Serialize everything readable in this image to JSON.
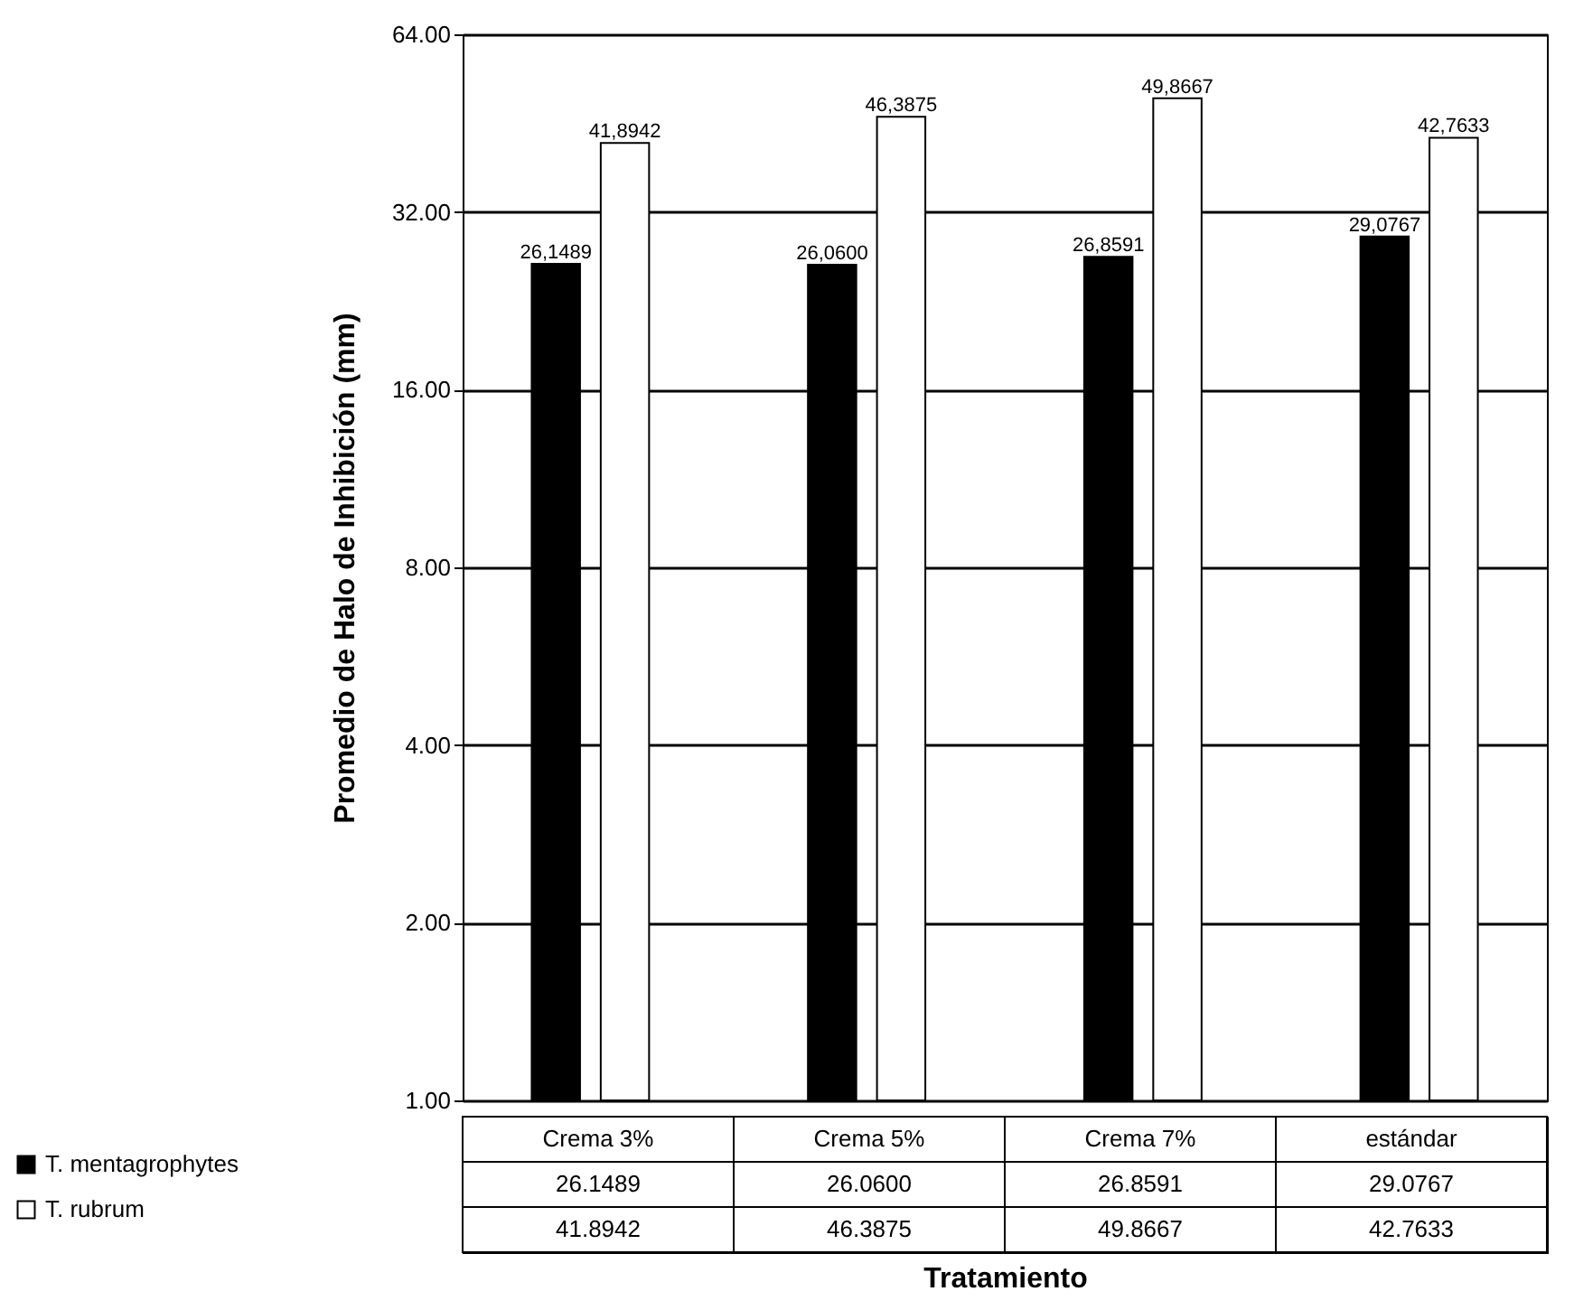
{
  "chart_data": {
    "type": "bar",
    "xlabel": "Tratamiento",
    "ylabel": "Promedio de Halo de Inhibición (mm)",
    "categories": [
      "Crema 3%",
      "Crema 5%",
      "Crema 7%",
      "estándar"
    ],
    "series": [
      {
        "name": "T. mentagrophytes",
        "color": "#000000",
        "values": [
          26.1489,
          26.06,
          26.8591,
          29.0767
        ],
        "value_labels": [
          "26,1489",
          "26,0600",
          "26,8591",
          "29,0767"
        ]
      },
      {
        "name": "T. rubrum",
        "color": "#ffffff",
        "values": [
          41.8942,
          46.3875,
          49.8667,
          42.7633
        ],
        "value_labels": [
          "41,8942",
          "46,3875",
          "49,8667",
          "42,7633"
        ]
      }
    ],
    "log": "y",
    "ylim": [
      1,
      64
    ],
    "yticks": [
      {
        "value": 1,
        "label": "1.00"
      },
      {
        "value": 2,
        "label": "2.00"
      },
      {
        "value": 4,
        "label": "4.00"
      },
      {
        "value": 8,
        "label": "8.00"
      },
      {
        "value": 16,
        "label": "16.00"
      },
      {
        "value": 32,
        "label": "32.00"
      },
      {
        "value": 64,
        "label": "64.00"
      }
    ],
    "grid": "y",
    "legend": "bottom left",
    "annotations": [
      "26.1489",
      "26.0600",
      "26.8591",
      "29.0767",
      "41.8942",
      "46.3875",
      "49.8667",
      "42.7633"
    ]
  }
}
